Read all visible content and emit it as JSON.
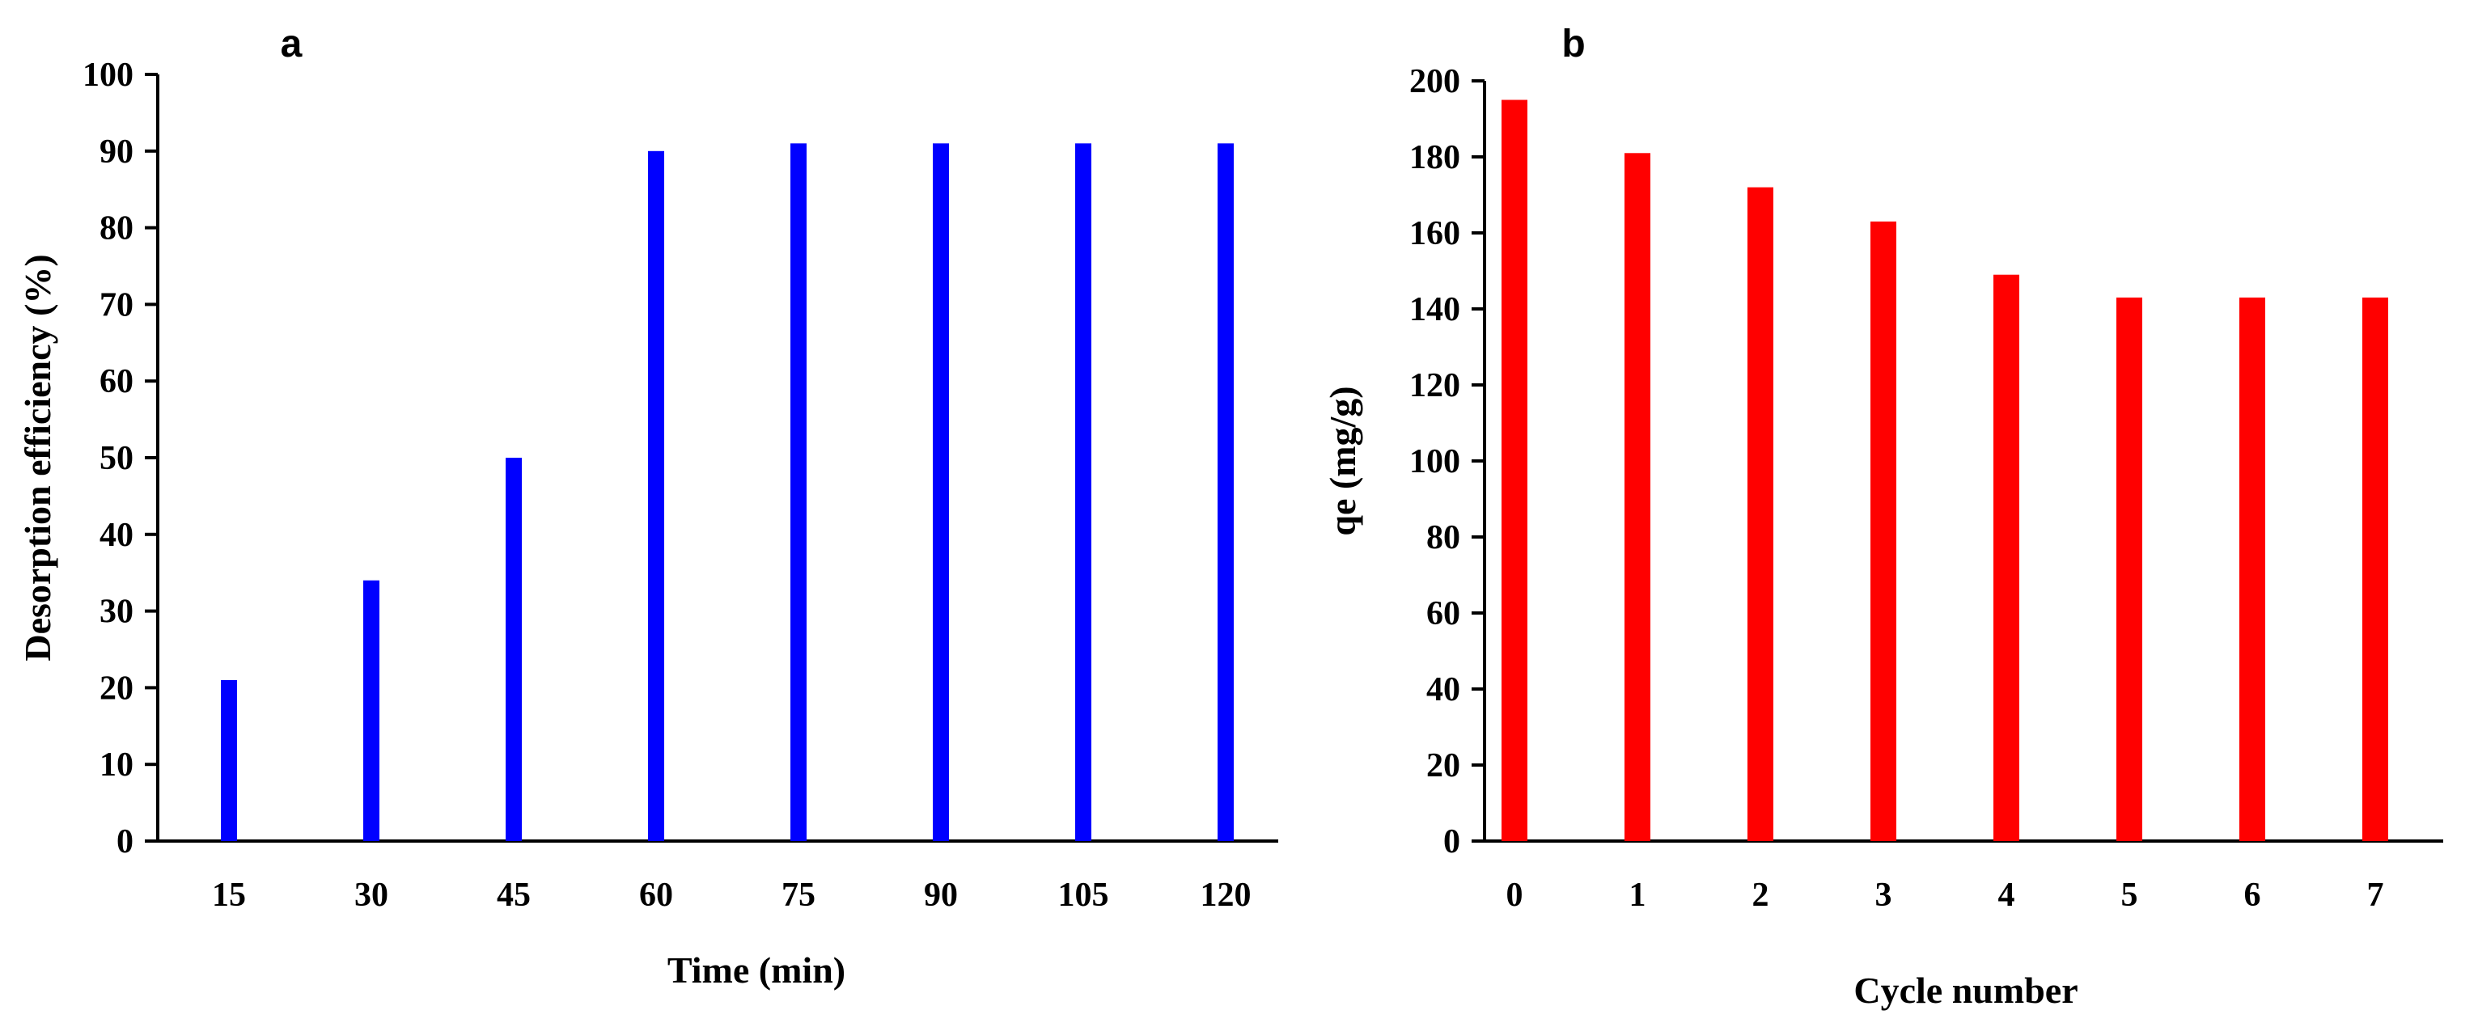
{
  "chart_data": [
    {
      "type": "bar",
      "panel_label": "a",
      "categories": [
        "15",
        "30",
        "45",
        "60",
        "75",
        "90",
        "105",
        "120"
      ],
      "values": [
        21,
        34,
        50,
        90,
        91,
        91,
        91,
        91
      ],
      "xlabel": "Time (min)",
      "ylabel": "Desorption  efficiency (%)",
      "ylim": [
        0,
        100
      ],
      "yticks": [
        0,
        10,
        20,
        30,
        40,
        50,
        60,
        70,
        80,
        90,
        100
      ],
      "grid": false,
      "bar_color": "#0000ff"
    },
    {
      "type": "bar",
      "panel_label": "b",
      "categories": [
        "0",
        "1",
        "2",
        "3",
        "4",
        "5",
        "6",
        "7"
      ],
      "values": [
        195,
        181,
        172,
        163,
        149,
        143,
        143,
        143
      ],
      "xlabel": "Cycle number",
      "ylabel": "qe  (mg/g)",
      "ylim": [
        0,
        200
      ],
      "yticks": [
        0,
        20,
        40,
        60,
        80,
        100,
        120,
        140,
        160,
        180,
        200
      ],
      "grid": false,
      "bar_color": "#ff0000"
    }
  ]
}
